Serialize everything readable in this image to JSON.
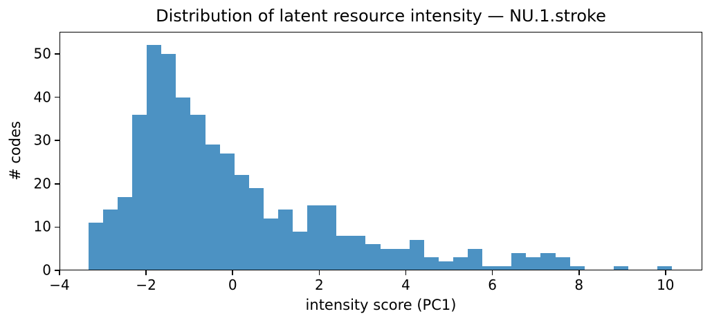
{
  "chart_data": {
    "type": "bar",
    "subtype": "histogram",
    "title": "Distribution of latent resource intensity — NU.1.stroke",
    "xlabel": "intensity score (PC1)",
    "ylabel": "# codes",
    "bar_color": "#4C92C3",
    "axis_color": "#000000",
    "background_color": "#FFFFFF",
    "grid": false,
    "legend": null,
    "bin_start": -3.33,
    "bin_width": 0.337,
    "counts": [
      11,
      14,
      17,
      36,
      52,
      50,
      40,
      36,
      29,
      27,
      22,
      19,
      12,
      14,
      9,
      15,
      15,
      8,
      8,
      6,
      5,
      5,
      7,
      3,
      2,
      3,
      5,
      1,
      1,
      4,
      3,
      4,
      3,
      1,
      0,
      0,
      1,
      0,
      0,
      1
    ],
    "total_codes": 489,
    "xlim": [
      -4,
      10.85
    ],
    "ylim": [
      0,
      55.1
    ],
    "xticks": {
      "values": [
        -4,
        -2,
        0,
        2,
        4,
        6,
        8,
        10
      ],
      "labels": [
        "−4",
        "−2",
        "0",
        "2",
        "4",
        "6",
        "8",
        "10"
      ]
    },
    "yticks": {
      "values": [
        0,
        10,
        20,
        30,
        40,
        50
      ],
      "labels": [
        "0",
        "10",
        "20",
        "30",
        "40",
        "50"
      ]
    }
  }
}
